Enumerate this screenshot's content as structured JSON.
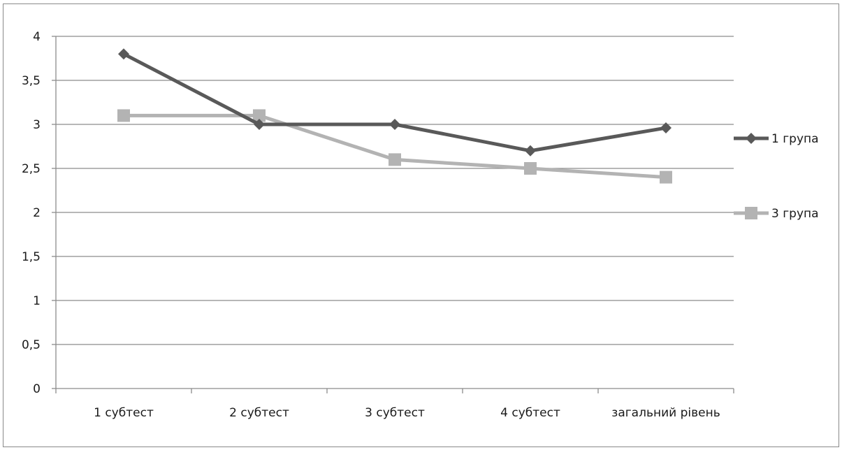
{
  "chart_data": {
    "type": "line",
    "categories": [
      "1 субтест",
      "2 субтест",
      "3 субтест",
      "4 субтест",
      "загальний рівень"
    ],
    "y_tick_labels": [
      "0",
      "0,5",
      "1",
      "1,5",
      "2",
      "2,5",
      "3",
      "3,5",
      "4"
    ],
    "ylim": [
      0,
      4
    ],
    "grid": true,
    "legend_position": "right",
    "series": [
      {
        "name": "1 група",
        "values": [
          3.8,
          3.0,
          3.0,
          2.7,
          2.96
        ],
        "color": "#595959",
        "marker": "diamond"
      },
      {
        "name": "3 група",
        "values": [
          3.1,
          3.1,
          2.6,
          2.5,
          2.4
        ],
        "color": "#b3b3b3",
        "marker": "square"
      }
    ]
  }
}
